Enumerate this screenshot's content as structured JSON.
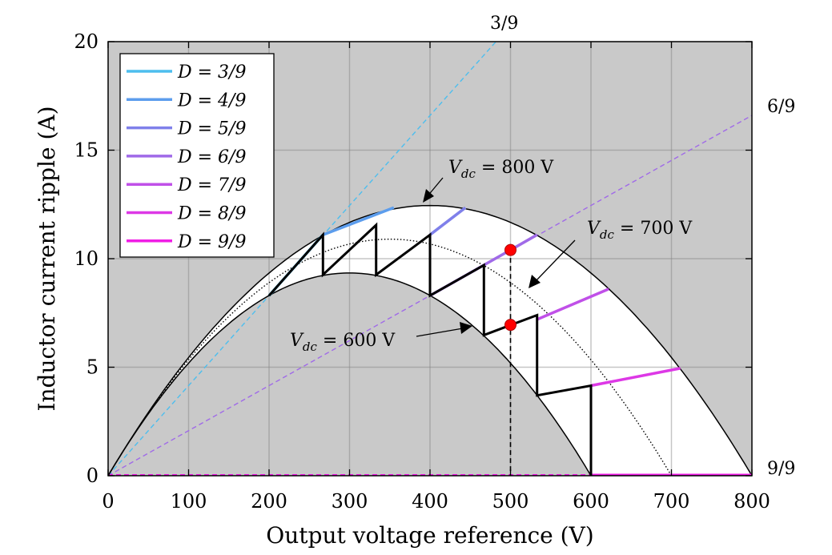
{
  "chart_data": {
    "type": "line",
    "xlabel": "Output voltage reference (V)",
    "ylabel": "Inductor current ripple (A)",
    "xlim": [
      0,
      800
    ],
    "ylim": [
      0,
      20
    ],
    "x_ticks": [
      0,
      100,
      200,
      300,
      400,
      500,
      600,
      700,
      800
    ],
    "y_ticks": [
      0,
      5,
      10,
      15,
      20
    ],
    "grid": true,
    "background": "#c9c9c9",
    "legend_position": "top-left",
    "legend_entries": [
      {
        "label": "D = 3/9",
        "color": "#4dbeee"
      },
      {
        "label": "D = 4/9",
        "color": "#5c9ded"
      },
      {
        "label": "D = 5/9",
        "color": "#7f80ea"
      },
      {
        "label": "D = 6/9",
        "color": "#a06ae8"
      },
      {
        "label": "D = 7/9",
        "color": "#c050e8"
      },
      {
        "label": "D = 8/9",
        "color": "#dd38e6"
      },
      {
        "label": "D = 9/9",
        "color": "#f01de6"
      }
    ],
    "envelopes": [
      {
        "label": "V_dc = 800 V",
        "vdc": 800,
        "peak": 12.45,
        "style": "solid"
      },
      {
        "label": "V_dc = 700 V",
        "vdc": 700,
        "peak": 10.9,
        "style": "dotted"
      },
      {
        "label": "V_dc = 600 V",
        "vdc": 600,
        "peak": 9.34,
        "style": "solid"
      }
    ],
    "duty_lines": [
      {
        "label": "3/9",
        "color": "#4dbeee",
        "points": [
          [
            0,
            0
          ],
          [
            500,
            20.75
          ]
        ]
      },
      {
        "label": "6/9",
        "color": "#a06ae8",
        "points": [
          [
            0,
            0
          ],
          [
            800,
            16.6
          ]
        ]
      },
      {
        "label": "9/9",
        "color": "#f01de6",
        "points": [
          [
            0,
            0.03
          ],
          [
            800,
            0.03
          ]
        ]
      }
    ],
    "colored_segments": [
      {
        "color": "#4dbeee",
        "points": [
          [
            200,
            8.3
          ],
          [
            267,
            11.1
          ]
        ]
      },
      {
        "color": "#5c9ded",
        "points": [
          [
            267,
            11.1
          ],
          [
            355,
            12.35
          ]
        ]
      },
      {
        "color": "#7f80ea",
        "points": [
          [
            400,
            11.1
          ],
          [
            444,
            12.35
          ]
        ]
      },
      {
        "color": "#a06ae8",
        "points": [
          [
            400,
            8.3
          ],
          [
            500,
            10.4
          ],
          [
            533,
            11.1
          ]
        ]
      },
      {
        "color": "#c050e8",
        "points": [
          [
            533,
            7.2
          ],
          [
            622,
            8.6
          ]
        ]
      },
      {
        "color": "#dd38e6",
        "points": [
          [
            600,
            4.15
          ],
          [
            711,
            4.95
          ]
        ]
      },
      {
        "color": "#f01de6",
        "points": [
          [
            600,
            0.03
          ],
          [
            800,
            0.03
          ]
        ]
      }
    ],
    "sawtooth": [
      [
        200,
        8.3
      ],
      [
        267,
        11.1
      ],
      [
        267,
        9.26
      ],
      [
        333,
        11.55
      ],
      [
        333,
        9.26
      ],
      [
        400,
        11.1
      ],
      [
        400,
        8.3
      ],
      [
        467,
        9.7
      ],
      [
        467,
        6.48
      ],
      [
        533,
        7.4
      ],
      [
        533,
        3.7
      ],
      [
        600,
        4.15
      ],
      [
        600,
        0
      ]
    ],
    "markers": [
      [
        500,
        10.4
      ],
      [
        500,
        6.95
      ]
    ],
    "vertical_reference": {
      "x": 500,
      "y_top": 10.4
    },
    "annotations": [
      {
        "prefix": "V",
        "sub": "dc",
        "value": " = 800 V"
      },
      {
        "prefix": "V",
        "sub": "dc",
        "value": " = 700 V"
      },
      {
        "prefix": "V",
        "sub": "dc",
        "value": " = 600 V"
      }
    ],
    "duty_labels": [
      "3/9",
      "6/9",
      "9/9"
    ]
  }
}
